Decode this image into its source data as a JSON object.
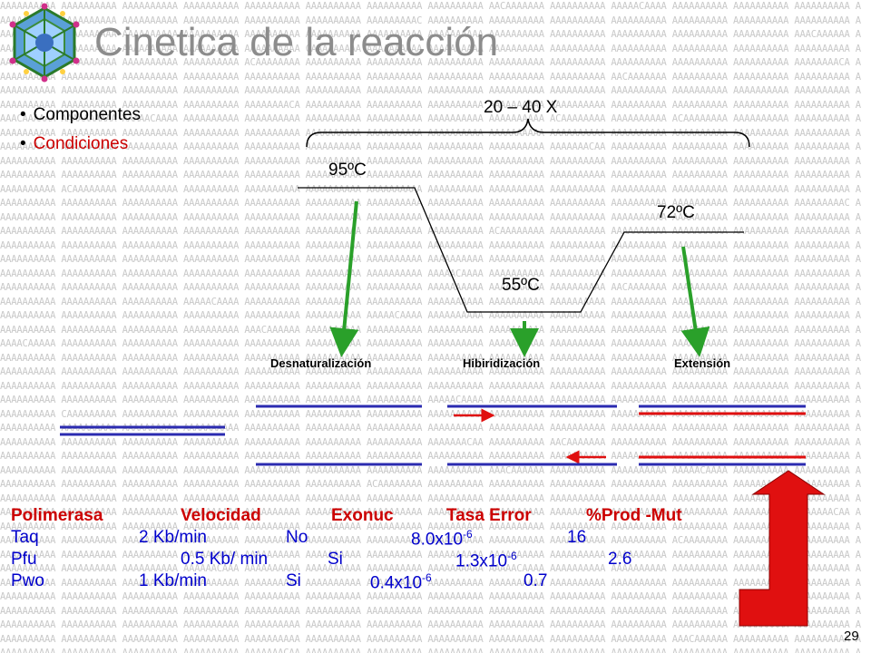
{
  "title": "Cinetica de la reacción",
  "bullets": [
    "Componentes",
    "Condiciones"
  ],
  "cycles_label": "20 – 40 X",
  "temperatures": {
    "denaturation": "95ºC",
    "annealing": "55ºC",
    "extension": "72ºC"
  },
  "steps": [
    "Desnaturalización",
    "Hibiridización",
    "Extensión"
  ],
  "table": {
    "headers": [
      "Polimerasa",
      "Velocidad",
      "Exonuc",
      "Tasa Error",
      "%Prod -Mut"
    ],
    "rows": [
      {
        "name": "Taq",
        "speed": "2 Kb/min",
        "exo": "No",
        "error_base": "8.0x10",
        "error_exp": "-6",
        "mut": "16"
      },
      {
        "name": "Pfu",
        "speed": "0.5 Kb/ min",
        "exo": "Si",
        "error_base": "1.3x10",
        "error_exp": "-6",
        "mut": "2.6"
      },
      {
        "name": "Pwo",
        "speed": "1 Kb/min",
        "exo": "Si",
        "error_base": "0.4x10",
        "error_exp": "-6",
        "mut": "0.7"
      }
    ]
  },
  "page_number": "29",
  "colors": {
    "dna_strand": "#2b2bb0",
    "primer": "#e01010",
    "arrow_green": "#2aa02a",
    "highlight_red": "#cc0000",
    "body_blue": "#0000cc"
  }
}
